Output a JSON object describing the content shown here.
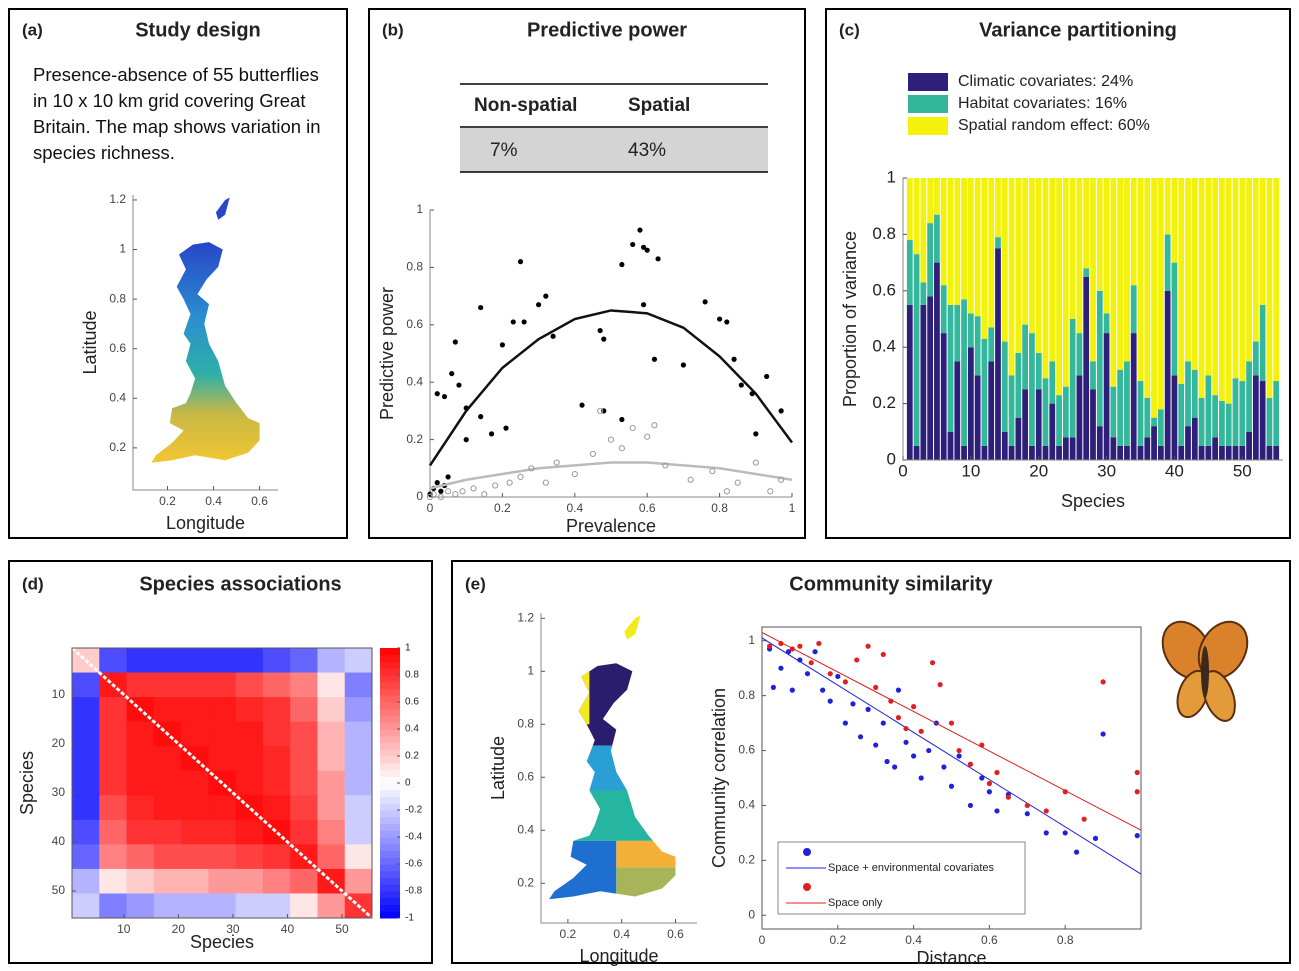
{
  "chart_data": [
    {
      "type": "map",
      "panel_label": "(a)",
      "title": "Study design",
      "description": "Presence-absence of 55 butterflies in 10 x 10 km grid covering Great Britain. The map shows variation in species richness.",
      "fill": "gradient",
      "xlabel": "Longitude",
      "ylabel": "Latitude",
      "xlim": [
        0.05,
        0.68
      ],
      "ylim": [
        0.03,
        1.22
      ],
      "xticks": [
        0.2,
        0.4,
        0.6
      ],
      "yticks": [
        0.2,
        0.4,
        0.6,
        0.8,
        1,
        1.2
      ]
    },
    {
      "type": "scatter",
      "panel_label": "(b)",
      "title": "Predictive power",
      "table": {
        "header": [
          "Non-spatial",
          "Spatial"
        ],
        "row": [
          "7%",
          "43%"
        ]
      },
      "xlabel": "Prevalence",
      "ylabel": "Predictive power",
      "xlim": [
        0,
        1
      ],
      "ylim": [
        0,
        1
      ],
      "xticks": [
        0,
        0.2,
        0.4,
        0.6,
        0.8,
        1
      ],
      "yticks": [
        0,
        0.2,
        0.4,
        0.6,
        0.8,
        1
      ],
      "series": [
        {
          "color": "#000000",
          "hollow": false,
          "x": [
            0,
            0.01,
            0.02,
            0.03,
            0.04,
            0.05,
            0.02,
            0.04,
            0.06,
            0.07,
            0.08,
            0.1,
            0.1,
            0.14,
            0.14,
            0.17,
            0.2,
            0.21,
            0.23,
            0.25,
            0.26,
            0.3,
            0.32,
            0.34,
            0.42,
            0.47,
            0.48,
            0.48,
            0.53,
            0.53,
            0.56,
            0.58,
            0.59,
            0.6,
            0.59,
            0.62,
            0.63,
            0.7,
            0.76,
            0.8,
            0.82,
            0.84,
            0.86,
            0.89,
            0.9,
            0.93,
            0.97
          ],
          "values": [
            0.01,
            0.03,
            0.05,
            0.02,
            0.04,
            0.07,
            0.36,
            0.35,
            0.43,
            0.54,
            0.39,
            0.2,
            0.31,
            0.66,
            0.28,
            0.22,
            0.53,
            0.24,
            0.61,
            0.82,
            0.61,
            0.67,
            0.7,
            0.56,
            0.32,
            0.58,
            0.55,
            0.3,
            0.27,
            0.81,
            0.88,
            0.93,
            0.87,
            0.86,
            0.67,
            0.48,
            0.83,
            0.46,
            0.68,
            0.62,
            0.61,
            0.48,
            0.39,
            0.36,
            0.22,
            0.42,
            0.3
          ],
          "fit": {
            "x": [
              0,
              0.1,
              0.2,
              0.3,
              0.4,
              0.5,
              0.6,
              0.7,
              0.8,
              0.9,
              1
            ],
            "values": [
              0.11,
              0.3,
              0.45,
              0.55,
              0.62,
              0.65,
              0.64,
              0.59,
              0.49,
              0.36,
              0.19
            ]
          }
        },
        {
          "color": "#999999",
          "hollow": true,
          "x": [
            0,
            0.01,
            0.03,
            0.05,
            0.07,
            0.09,
            0.12,
            0.15,
            0.18,
            0.22,
            0.25,
            0.28,
            0.32,
            0.35,
            0.4,
            0.45,
            0.47,
            0.5,
            0.53,
            0.56,
            0.6,
            0.62,
            0.65,
            0.72,
            0.78,
            0.82,
            0.85,
            0.9,
            0.94,
            0.97
          ],
          "values": [
            0,
            0.01,
            0,
            0.02,
            0.01,
            0.02,
            0.03,
            0.01,
            0.04,
            0.05,
            0.07,
            0.1,
            0.05,
            0.12,
            0.08,
            0.15,
            0.3,
            0.2,
            0.17,
            0.24,
            0.21,
            0.25,
            0.11,
            0.06,
            0.09,
            0.02,
            0.05,
            0.12,
            0.02,
            0.06
          ],
          "fit": {
            "x": [
              0,
              0.1,
              0.2,
              0.3,
              0.4,
              0.5,
              0.6,
              0.7,
              0.8,
              0.9,
              1
            ],
            "values": [
              0.03,
              0.06,
              0.08,
              0.1,
              0.11,
              0.12,
              0.12,
              0.11,
              0.1,
              0.08,
              0.06
            ]
          }
        }
      ]
    },
    {
      "type": "bar",
      "stacked": true,
      "panel_label": "(c)",
      "title": "Variance partitioning",
      "xlabel": "Species",
      "ylabel": "Proportion of variance",
      "legend": "top-left",
      "xlim": [
        0,
        56
      ],
      "ylim": [
        0,
        1
      ],
      "xticks": [
        0,
        10,
        20,
        30,
        40,
        50
      ],
      "yticks": [
        0,
        0.2,
        0.4,
        0.6,
        0.8,
        1
      ],
      "x": [
        1,
        2,
        3,
        4,
        5,
        6,
        7,
        8,
        9,
        10,
        11,
        12,
        13,
        14,
        15,
        16,
        17,
        18,
        19,
        20,
        21,
        22,
        23,
        24,
        25,
        26,
        27,
        28,
        29,
        30,
        31,
        32,
        33,
        34,
        35,
        36,
        37,
        38,
        39,
        40,
        41,
        42,
        43,
        44,
        45,
        46,
        47,
        48,
        49,
        50,
        51,
        52,
        53,
        54,
        55
      ],
      "series": [
        {
          "name": "Climatic covariates: 24%",
          "color": "#2e1f7a",
          "values": [
            0.55,
            0.05,
            0.55,
            0.58,
            0.7,
            0.45,
            0.1,
            0.35,
            0.05,
            0.4,
            0.3,
            0.05,
            0.35,
            0.75,
            0.1,
            0.05,
            0.15,
            0.25,
            0.05,
            0.25,
            0.05,
            0.2,
            0.05,
            0.08,
            0.08,
            0.3,
            0.65,
            0.25,
            0.12,
            0.45,
            0.08,
            0.05,
            0.05,
            0.45,
            0.05,
            0.08,
            0.12,
            0.05,
            0.6,
            0.3,
            0.05,
            0.12,
            0.15,
            0.05,
            0.05,
            0.08,
            0.05,
            0.05,
            0.05,
            0.05,
            0.1,
            0.3,
            0.28,
            0.05,
            0.05
          ]
        },
        {
          "name": "Habitat covariates: 16%",
          "color": "#35b79b",
          "values": [
            0.23,
            0.68,
            0.08,
            0.26,
            0.17,
            0.17,
            0.45,
            0.2,
            0.52,
            0.12,
            0.21,
            0.38,
            0.12,
            0.04,
            0.32,
            0.25,
            0.23,
            0.23,
            0.4,
            0.13,
            0.24,
            0.15,
            0.18,
            0.18,
            0.42,
            0.15,
            0.03,
            0.1,
            0.48,
            0.07,
            0.18,
            0.27,
            0.3,
            0.17,
            0.23,
            0.14,
            0.03,
            0.13,
            0.2,
            0.4,
            0.22,
            0.23,
            0.17,
            0.17,
            0.25,
            0.15,
            0.16,
            0.15,
            0.24,
            0.23,
            0.25,
            0.12,
            0.27,
            0.17,
            0.23
          ]
        },
        {
          "name": "Spatial random effect: 60%",
          "color": "#f2f20d",
          "values": [
            0.22,
            0.27,
            0.37,
            0.16,
            0.13,
            0.38,
            0.45,
            0.45,
            0.43,
            0.48,
            0.49,
            0.57,
            0.53,
            0.21,
            0.58,
            0.7,
            0.62,
            0.52,
            0.55,
            0.62,
            0.71,
            0.65,
            0.77,
            0.74,
            0.5,
            0.55,
            0.32,
            0.65,
            0.4,
            0.48,
            0.74,
            0.68,
            0.65,
            0.38,
            0.72,
            0.78,
            0.85,
            0.82,
            0.2,
            0.3,
            0.73,
            0.65,
            0.68,
            0.78,
            0.7,
            0.77,
            0.79,
            0.8,
            0.71,
            0.72,
            0.65,
            0.58,
            0.45,
            0.78,
            0.72
          ]
        }
      ]
    },
    {
      "type": "heatmap",
      "panel_label": "(d)",
      "title": "Species associations",
      "xlabel": "Species",
      "ylabel": "Species",
      "edges": [
        0.5,
        5.5,
        10.5,
        15.5,
        20.5,
        25.5,
        30.5,
        35.5,
        40.5,
        45.5,
        50.5,
        55.5
      ],
      "xlim": [
        0.5,
        55.5
      ],
      "ylim": [
        0.5,
        55.5
      ],
      "xticks": [
        10,
        20,
        30,
        40,
        50
      ],
      "yticks": [
        10,
        20,
        30,
        40,
        50
      ],
      "values": [
        [
          0.2,
          -0.7,
          -0.8,
          -0.8,
          -0.8,
          -0.8,
          -0.8,
          -0.7,
          -0.6,
          -0.3,
          -0.2
        ],
        [
          -0.7,
          0.9,
          0.8,
          0.8,
          0.8,
          0.8,
          0.7,
          0.6,
          0.5,
          0.1,
          -0.5
        ],
        [
          -0.8,
          0.8,
          0.95,
          0.9,
          0.9,
          0.9,
          0.85,
          0.8,
          0.6,
          0.2,
          -0.4
        ],
        [
          -0.8,
          0.8,
          0.9,
          0.95,
          0.9,
          0.9,
          0.9,
          0.8,
          0.7,
          0.3,
          -0.3
        ],
        [
          -0.8,
          0.8,
          0.9,
          0.9,
          0.95,
          0.9,
          0.9,
          0.85,
          0.7,
          0.3,
          -0.3
        ],
        [
          -0.8,
          0.8,
          0.9,
          0.9,
          0.9,
          0.95,
          0.9,
          0.85,
          0.7,
          0.4,
          -0.3
        ],
        [
          -0.8,
          0.7,
          0.85,
          0.9,
          0.9,
          0.9,
          0.95,
          0.9,
          0.75,
          0.4,
          -0.2
        ],
        [
          -0.7,
          0.6,
          0.8,
          0.8,
          0.85,
          0.85,
          0.9,
          0.95,
          0.8,
          0.5,
          -0.2
        ],
        [
          -0.6,
          0.5,
          0.6,
          0.7,
          0.7,
          0.7,
          0.75,
          0.8,
          0.9,
          0.6,
          0.1
        ],
        [
          -0.3,
          0.1,
          0.2,
          0.3,
          0.3,
          0.4,
          0.4,
          0.5,
          0.6,
          0.9,
          0.4
        ],
        [
          -0.2,
          -0.5,
          -0.4,
          -0.3,
          -0.3,
          -0.3,
          -0.2,
          -0.2,
          0.1,
          0.4,
          0.8
        ]
      ],
      "clim": [
        -1,
        1
      ],
      "cticks": [
        1,
        0.8,
        0.6,
        0.4,
        0.2,
        0,
        -0.2,
        -0.4,
        -0.6,
        -0.8,
        -1
      ]
    },
    {
      "type": "map",
      "panel_label": "(e)",
      "title": "Community similarity",
      "fill": "clusters",
      "xlabel": "Longitude",
      "ylabel": "Latitude",
      "xlim": [
        0.1,
        0.68
      ],
      "ylim": [
        0.05,
        1.22
      ],
      "xticks": [
        0.2,
        0.4,
        0.6
      ],
      "yticks": [
        0.2,
        0.4,
        0.6,
        0.8,
        1,
        1.2
      ]
    },
    {
      "type": "scatter",
      "xlabel": "Distance",
      "ylabel": "Community correlation",
      "legend": "bottom-left",
      "xlim": [
        0,
        1
      ],
      "ylim": [
        -0.05,
        1.05
      ],
      "xticks": [
        0,
        0.2,
        0.4,
        0.6,
        0.8
      ],
      "yticks": [
        0,
        0.2,
        0.4,
        0.6,
        0.8,
        1
      ],
      "series": [
        {
          "name": "Space + environmental covariates",
          "color": "#2020e0",
          "hollow": false,
          "x": [
            0.02,
            0.03,
            0.05,
            0.07,
            0.08,
            0.1,
            0.12,
            0.14,
            0.16,
            0.18,
            0.2,
            0.22,
            0.24,
            0.26,
            0.28,
            0.3,
            0.32,
            0.33,
            0.35,
            0.36,
            0.38,
            0.4,
            0.42,
            0.44,
            0.46,
            0.48,
            0.5,
            0.52,
            0.55,
            0.58,
            0.6,
            0.62,
            0.65,
            0.7,
            0.75,
            0.8,
            0.83,
            0.88,
            0.9,
            0.99
          ],
          "values": [
            0.97,
            0.83,
            0.9,
            0.96,
            0.82,
            0.93,
            0.88,
            0.96,
            0.82,
            0.78,
            0.87,
            0.7,
            0.77,
            0.65,
            0.75,
            0.62,
            0.7,
            0.56,
            0.54,
            0.82,
            0.63,
            0.58,
            0.5,
            0.6,
            0.7,
            0.54,
            0.47,
            0.58,
            0.4,
            0.5,
            0.45,
            0.38,
            0.44,
            0.37,
            0.3,
            0.3,
            0.23,
            0.28,
            0.66,
            0.29
          ],
          "fit": {
            "x": [
              0,
              1
            ],
            "values": [
              1.01,
              0.15
            ]
          }
        },
        {
          "name": "Space only",
          "color": "#e02020",
          "hollow": false,
          "x": [
            0.02,
            0.05,
            0.08,
            0.1,
            0.13,
            0.15,
            0.18,
            0.22,
            0.25,
            0.28,
            0.3,
            0.32,
            0.34,
            0.36,
            0.38,
            0.4,
            0.42,
            0.45,
            0.47,
            0.5,
            0.52,
            0.55,
            0.58,
            0.6,
            0.62,
            0.65,
            0.7,
            0.75,
            0.8,
            0.85,
            0.9,
            0.99,
            0.99
          ],
          "values": [
            0.98,
            0.99,
            0.97,
            0.98,
            0.92,
            0.99,
            0.88,
            0.85,
            0.93,
            0.98,
            0.83,
            0.95,
            0.78,
            0.72,
            0.68,
            0.76,
            0.67,
            0.92,
            0.84,
            0.7,
            0.6,
            0.55,
            0.62,
            0.48,
            0.52,
            0.43,
            0.4,
            0.38,
            0.45,
            0.35,
            0.85,
            0.52,
            0.45
          ],
          "fit": {
            "x": [
              0,
              1
            ],
            "values": [
              1.03,
              0.31
            ]
          }
        }
      ]
    }
  ]
}
